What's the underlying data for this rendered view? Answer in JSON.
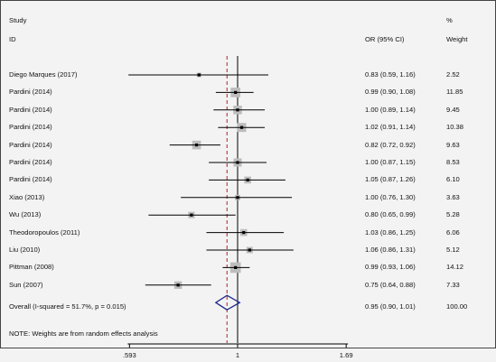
{
  "chart_data": {
    "type": "forest",
    "header": {
      "study_line1": "Study",
      "study_line2": "ID",
      "or_label": "OR (95% CI)",
      "weight_line1": "%",
      "weight_line2": "Weight"
    },
    "studies": [
      {
        "label": "Diego Marques (2017)",
        "or": 0.83,
        "lo": 0.59,
        "hi": 1.16,
        "weight": 2.52,
        "ci_text": "0.83 (0.59, 1.16)",
        "weight_text": "2.52"
      },
      {
        "label": "Pardini (2014)",
        "or": 0.99,
        "lo": 0.9,
        "hi": 1.08,
        "weight": 11.85,
        "ci_text": "0.99 (0.90, 1.08)",
        "weight_text": "11.85"
      },
      {
        "label": "Pardini (2014)",
        "or": 1.0,
        "lo": 0.89,
        "hi": 1.14,
        "weight": 9.45,
        "ci_text": "1.00 (0.89, 1.14)",
        "weight_text": "9.45"
      },
      {
        "label": "Pardini (2014)",
        "or": 1.02,
        "lo": 0.91,
        "hi": 1.14,
        "weight": 10.38,
        "ci_text": "1.02 (0.91, 1.14)",
        "weight_text": "10.38"
      },
      {
        "label": "Pardini (2014)",
        "or": 0.82,
        "lo": 0.72,
        "hi": 0.92,
        "weight": 9.63,
        "ci_text": "0.82 (0.72, 0.92)",
        "weight_text": "9.63"
      },
      {
        "label": "Pardini (2014)",
        "or": 1.0,
        "lo": 0.87,
        "hi": 1.15,
        "weight": 8.53,
        "ci_text": "1.00 (0.87, 1.15)",
        "weight_text": "8.53"
      },
      {
        "label": "Pardini (2014)",
        "or": 1.05,
        "lo": 0.87,
        "hi": 1.26,
        "weight": 6.1,
        "ci_text": "1.05 (0.87, 1.26)",
        "weight_text": "6.10"
      },
      {
        "label": "Xiao (2013)",
        "or": 1.0,
        "lo": 0.76,
        "hi": 1.3,
        "weight": 3.63,
        "ci_text": "1.00 (0.76, 1.30)",
        "weight_text": "3.63"
      },
      {
        "label": "Wu (2013)",
        "or": 0.8,
        "lo": 0.65,
        "hi": 0.99,
        "weight": 5.28,
        "ci_text": "0.80 (0.65, 0.99)",
        "weight_text": "5.28"
      },
      {
        "label": "Theodoropoulos  (2011)",
        "or": 1.03,
        "lo": 0.86,
        "hi": 1.25,
        "weight": 6.06,
        "ci_text": "1.03 (0.86, 1.25)",
        "weight_text": "6.06"
      },
      {
        "label": "Liu  (2010)",
        "or": 1.06,
        "lo": 0.86,
        "hi": 1.31,
        "weight": 5.12,
        "ci_text": "1.06 (0.86, 1.31)",
        "weight_text": "5.12"
      },
      {
        "label": "Pittman (2008)",
        "or": 0.99,
        "lo": 0.93,
        "hi": 1.06,
        "weight": 14.12,
        "ci_text": "0.99 (0.93, 1.06)",
        "weight_text": "14.12"
      },
      {
        "label": "Sun (2007)",
        "or": 0.75,
        "lo": 0.64,
        "hi": 0.88,
        "weight": 7.33,
        "ci_text": "0.75 (0.64, 0.88)",
        "weight_text": "7.33"
      }
    ],
    "overall": {
      "label": "Overall  (I-squared = 51.7%, p = 0.015)",
      "or": 0.95,
      "lo": 0.9,
      "hi": 1.01,
      "ci_text": "0.95 (0.90, 1.01)",
      "weight_text": "100.00"
    },
    "note": "NOTE: Weights are from random effects analysis",
    "x_scale": "log",
    "x_ticks": [
      0.593,
      1,
      1.69
    ],
    "x_tick_labels": [
      ".593",
      "1",
      "1.69"
    ],
    "xlim": [
      0.593,
      1.69
    ],
    "null_line": 1,
    "colors": {
      "background": "#f3f3f3",
      "line": "#000000",
      "box": "#bdbdbd",
      "dashed_line": "#b22222",
      "diamond": "#1f2b8c"
    }
  }
}
